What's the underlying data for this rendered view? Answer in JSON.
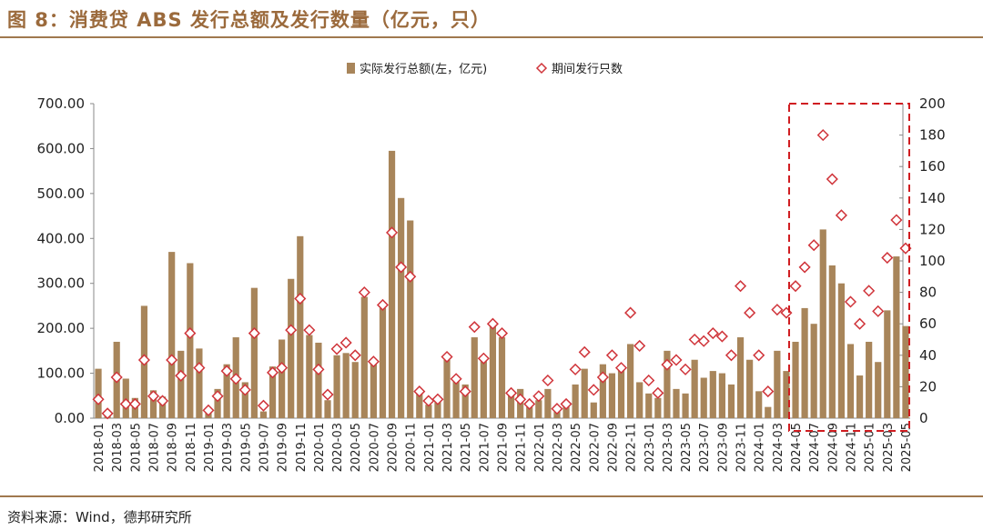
{
  "title": "图 8：消费贷 ABS 发行总额及发行数量（亿元，只）",
  "source": "资料来源：Wind，德邦研究所",
  "chart_data": {
    "type": "bar",
    "x": [
      "2018-01",
      "2018-02",
      "2018-03",
      "2018-04",
      "2018-05",
      "2018-06",
      "2018-07",
      "2018-08",
      "2018-09",
      "2018-10",
      "2018-11",
      "2018-12",
      "2019-01",
      "2019-02",
      "2019-03",
      "2019-04",
      "2019-05",
      "2019-06",
      "2019-07",
      "2019-08",
      "2019-09",
      "2019-10",
      "2019-11",
      "2019-12",
      "2020-01",
      "2020-02",
      "2020-03",
      "2020-04",
      "2020-05",
      "2020-06",
      "2020-07",
      "2020-08",
      "2020-09",
      "2020-10",
      "2020-11",
      "2020-12",
      "2021-01",
      "2021-02",
      "2021-03",
      "2021-04",
      "2021-05",
      "2021-06",
      "2021-07",
      "2021-08",
      "2021-09",
      "2021-10",
      "2021-11",
      "2021-12",
      "2022-01",
      "2022-02",
      "2022-03",
      "2022-04",
      "2022-05",
      "2022-06",
      "2022-07",
      "2022-08",
      "2022-09",
      "2022-10",
      "2022-11",
      "2022-12",
      "2023-01",
      "2023-02",
      "2023-03",
      "2023-04",
      "2023-05",
      "2023-06",
      "2023-07",
      "2023-08",
      "2023-09",
      "2023-10",
      "2023-11",
      "2023-12",
      "2024-01",
      "2024-02",
      "2024-03",
      "2024-04",
      "2024-05",
      "2024-06",
      "2024-07",
      "2024-08",
      "2024-09",
      "2024-10",
      "2024-11",
      "2024-12",
      "2025-01",
      "2025-02",
      "2025-03",
      "2025-04",
      "2025-05"
    ],
    "series": [
      {
        "name": "实际发行总额(左，亿元)",
        "type": "bar",
        "axis": "left",
        "color": "#a8855a",
        "values": [
          110,
          5,
          170,
          88,
          45,
          250,
          62,
          48,
          370,
          150,
          345,
          155,
          15,
          65,
          120,
          180,
          80,
          290,
          15,
          115,
          175,
          310,
          405,
          185,
          168,
          40,
          140,
          145,
          125,
          270,
          125,
          245,
          595,
          490,
          440,
          55,
          30,
          40,
          130,
          85,
          75,
          180,
          130,
          210,
          180,
          55,
          65,
          25,
          40,
          65,
          15,
          30,
          75,
          110,
          35,
          120,
          100,
          110,
          165,
          80,
          55,
          45,
          150,
          65,
          55,
          130,
          90,
          105,
          100,
          75,
          180,
          130,
          60,
          25,
          150,
          105,
          170,
          245,
          210,
          420,
          340,
          300,
          165,
          95,
          170,
          125,
          240,
          360,
          205
        ]
      },
      {
        "name": "期间发行只数",
        "type": "scatter",
        "axis": "right",
        "color": "#d0343a",
        "values": [
          12,
          3,
          26,
          9,
          9,
          37,
          14,
          11,
          37,
          27,
          54,
          32,
          5,
          14,
          30,
          25,
          18,
          54,
          8,
          29,
          32,
          56,
          76,
          56,
          31,
          15,
          44,
          48,
          40,
          80,
          36,
          72,
          118,
          96,
          90,
          17,
          11,
          12,
          39,
          25,
          17,
          58,
          38,
          60,
          54,
          16,
          12,
          9,
          14,
          24,
          6,
          9,
          31,
          42,
          18,
          26,
          40,
          32,
          67,
          46,
          24,
          16,
          34,
          37,
          31,
          50,
          49,
          54,
          52,
          40,
          84,
          67,
          40,
          17,
          69,
          67,
          84,
          96,
          110,
          180,
          152,
          129,
          74,
          60,
          81,
          68,
          102,
          126,
          108
        ]
      }
    ],
    "yleft": {
      "range": [
        0,
        700
      ],
      "ticks": [
        "0.00",
        "100.00",
        "200.00",
        "300.00",
        "400.00",
        "500.00",
        "600.00",
        "700.00"
      ]
    },
    "yright": {
      "range": [
        0,
        200
      ],
      "ticks": [
        "0",
        "20",
        "40",
        "60",
        "80",
        "100",
        "120",
        "140",
        "160",
        "180",
        "200"
      ]
    },
    "xtick_step": 2,
    "legend": "top-center",
    "highlight": {
      "from": "2024-05",
      "to": "2025-05",
      "style": "red dashed box"
    }
  }
}
